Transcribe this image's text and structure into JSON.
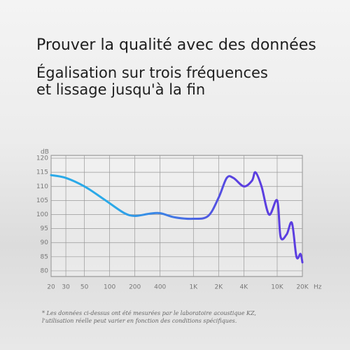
{
  "chart_data": {
    "type": "line",
    "title": "Prouver la qualité avec des données",
    "subtitle": [
      "Égalisation sur trois fréquences",
      "et lissage jusqu'à la fin"
    ],
    "y_label": "dB",
    "x_label": "Hz",
    "x": [
      20,
      30,
      50,
      80,
      100,
      150,
      200,
      300,
      400,
      600,
      1000,
      1500,
      2000,
      2500,
      3000,
      4000,
      5000,
      5500,
      6500,
      8000,
      10000,
      11000,
      13000,
      15000,
      17000,
      19000,
      20000
    ],
    "series": [
      {
        "color": [
          "#2aa9e8",
          "#5b3ee0"
        ],
        "values": [
          114,
          113,
          110,
          106,
          104,
          100.5,
          99.5,
          100.3,
          100.5,
          99,
          98.5,
          99.5,
          106,
          113,
          113,
          110,
          112,
          115,
          110,
          100,
          105,
          92,
          93,
          97,
          85,
          86,
          83
        ]
      }
    ],
    "xlog": true,
    "xlim": [
      20,
      20000
    ],
    "xticks": [
      20,
      30,
      50,
      100,
      200,
      400,
      {
        "value": 1000,
        "label": "1K"
      },
      {
        "value": 2000,
        "label": "2K"
      },
      {
        "value": 4000,
        "label": "4K"
      },
      {
        "value": 10000,
        "label": "10K"
      },
      {
        "value": 20000,
        "label": "20K"
      }
    ],
    "ylim": [
      78,
      121
    ],
    "yticks": [
      120,
      115,
      110,
      105,
      100,
      95,
      90,
      85,
      80
    ],
    "grid": true,
    "footnote": [
      "* Les données ci-dessus ont été mesurées par le laboratoire acoustique KZ,",
      "l'utilisation réelle peut varier en fonction des conditions spécifiques."
    ]
  }
}
